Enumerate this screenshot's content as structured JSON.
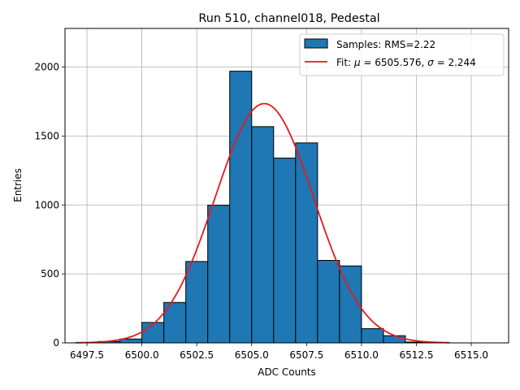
{
  "chart_data": {
    "type": "bar",
    "title": "Run 510, channel018, Pedestal",
    "xlabel": "ADC Counts",
    "ylabel": "Entries",
    "xlim": [
      6496.5,
      6516.7
    ],
    "ylim": [
      0,
      2280
    ],
    "xticks": [
      6497.5,
      6500.0,
      6502.5,
      6505.0,
      6507.5,
      6510.0,
      6512.5,
      6515.0
    ],
    "xtick_labels": [
      "6497.5",
      "6500.0",
      "6502.5",
      "6505.0",
      "6507.5",
      "6510.0",
      "6512.5",
      "6515.0"
    ],
    "yticks": [
      0,
      500,
      1000,
      1500,
      2000
    ],
    "ytick_labels": [
      "0",
      "500",
      "1000",
      "1500",
      "2000"
    ],
    "grid": true,
    "legend_position": "top-right",
    "histogram": {
      "name": "Samples: RMS=2.22",
      "bin_edges": [
        6497,
        6498,
        6499,
        6500,
        6501,
        6502,
        6503,
        6504,
        6505,
        6506,
        6507,
        6508,
        6509,
        6510,
        6511,
        6512,
        6513,
        6514
      ],
      "counts": [
        3,
        10,
        28,
        148,
        293,
        590,
        998,
        1970,
        1568,
        1340,
        1450,
        598,
        558,
        103,
        52,
        6,
        2
      ],
      "fill_color": "#1f77b4",
      "edge_color": "#000000"
    },
    "fit": {
      "name": "Fit: μ = 6505.576, σ = 2.244",
      "name_prefix": "Fit: ",
      "name_mu": "μ",
      "name_mid": " = 6505.576, ",
      "name_sigma": "σ",
      "name_suffix": " = 2.244",
      "mu": 6505.576,
      "sigma": 2.244,
      "amplitude": 1735,
      "x_range": [
        6497,
        6514
      ],
      "color": "#e41a1c"
    }
  }
}
